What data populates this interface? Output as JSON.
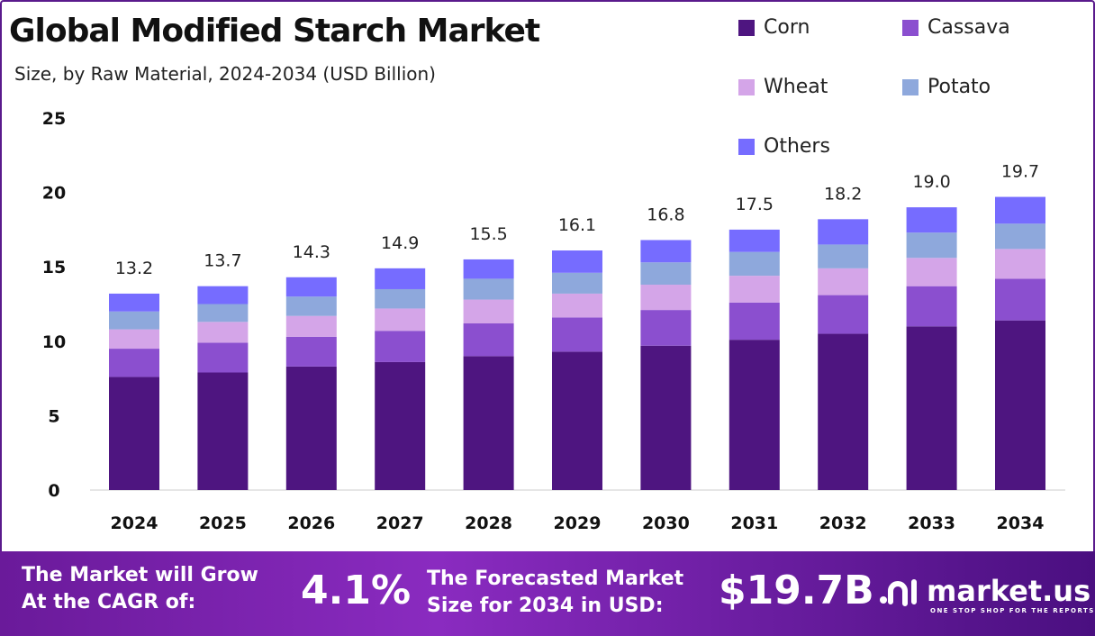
{
  "chart_data": {
    "type": "bar",
    "stacked": true,
    "title": "Global Modified Starch Market",
    "subtitle": "Size, by Raw Material, 2024-2034 (USD Billion)",
    "categories": [
      "2024",
      "2025",
      "2026",
      "2027",
      "2028",
      "2029",
      "2030",
      "2031",
      "2032",
      "2033",
      "2034"
    ],
    "totals": [
      "13.2",
      "13.7",
      "14.3",
      "14.9",
      "15.5",
      "16.1",
      "16.8",
      "17.5",
      "18.2",
      "19.0",
      "19.7"
    ],
    "series": [
      {
        "name": "Corn",
        "color": "#4e1580",
        "values": [
          7.6,
          7.9,
          8.3,
          8.6,
          9.0,
          9.3,
          9.7,
          10.1,
          10.5,
          11.0,
          11.4
        ]
      },
      {
        "name": "Cassava",
        "color": "#8b4fcf",
        "values": [
          1.9,
          2.0,
          2.0,
          2.1,
          2.2,
          2.3,
          2.4,
          2.5,
          2.6,
          2.7,
          2.8
        ]
      },
      {
        "name": "Wheat",
        "color": "#d4a5e8",
        "values": [
          1.3,
          1.4,
          1.4,
          1.5,
          1.6,
          1.6,
          1.7,
          1.8,
          1.8,
          1.9,
          2.0
        ]
      },
      {
        "name": "Potato",
        "color": "#8ea8dc",
        "values": [
          1.2,
          1.2,
          1.3,
          1.3,
          1.4,
          1.4,
          1.5,
          1.6,
          1.6,
          1.7,
          1.7
        ]
      },
      {
        "name": "Others",
        "color": "#766cff",
        "values": [
          1.2,
          1.2,
          1.3,
          1.4,
          1.3,
          1.5,
          1.5,
          1.5,
          1.7,
          1.7,
          1.8
        ]
      }
    ],
    "yticks": [
      "0",
      "5",
      "10",
      "15",
      "20",
      "25"
    ],
    "ylim": [
      0,
      25
    ],
    "grid": false,
    "legend_position": "top-right"
  },
  "footer": {
    "cagr_label": "The Market will Grow At the CAGR of:",
    "cagr_value": "4.1%",
    "forecast_label": "The Forecasted Market Size for 2034 in USD:",
    "forecast_value": "$19.7B",
    "logo_name": "market.us",
    "logo_tagline": "ONE STOP SHOP FOR THE REPORTS"
  }
}
